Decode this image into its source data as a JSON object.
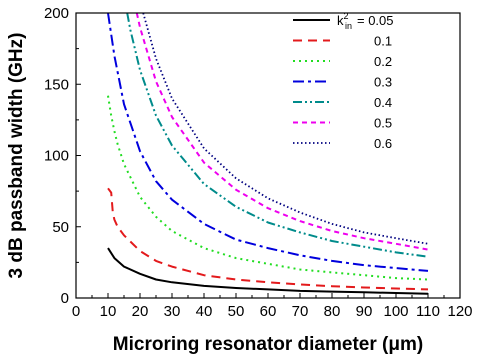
{
  "chart_data": {
    "type": "line",
    "xlabel": "Microring resonator diameter (μm)",
    "ylabel": "3 dB passband width (GHz)",
    "xlim": [
      0,
      120
    ],
    "ylim": [
      0,
      200
    ],
    "xticks": [
      0,
      10,
      20,
      30,
      40,
      50,
      60,
      70,
      80,
      90,
      100,
      110,
      120
    ],
    "yticks": [
      0,
      50,
      100,
      150,
      200
    ],
    "legend_position": "top-right",
    "legend_title_prefix": "k",
    "legend_title_sup": "2",
    "legend_title_sub": "in",
    "legend_title_suffix": "= 0.05",
    "series": [
      {
        "name": "0.05",
        "color": "#000000",
        "style": "solid",
        "x": [
          10,
          12,
          15,
          20,
          25,
          30,
          40,
          50,
          60,
          70,
          80,
          90,
          100,
          110
        ],
        "y": [
          35,
          28,
          22,
          17,
          13,
          11,
          8.5,
          7,
          6,
          5,
          4.5,
          4,
          3.5,
          3
        ]
      },
      {
        "name": "0.1",
        "color": "#e31a1c",
        "style": "dash",
        "x": [
          10,
          11,
          11.5,
          12,
          13,
          15,
          20,
          25,
          30,
          40,
          50,
          60,
          70,
          80,
          90,
          100,
          110
        ],
        "y": [
          77,
          74,
          60,
          55,
          50,
          44,
          33,
          26,
          22,
          16,
          13,
          11,
          9.5,
          8.3,
          7.4,
          6.7,
          6
        ]
      },
      {
        "name": "0.2",
        "color": "#22dd22",
        "style": "dot",
        "x": [
          10,
          11,
          12,
          13,
          15,
          20,
          25,
          30,
          40,
          50,
          60,
          70,
          80,
          90,
          100,
          110
        ],
        "y": [
          142,
          128,
          117,
          108,
          94,
          71,
          57,
          47,
          35,
          28,
          24,
          20,
          18,
          16,
          14,
          13
        ]
      },
      {
        "name": "0.3",
        "color": "#0000dd",
        "style": "dashdot",
        "x": [
          10,
          12,
          15,
          20,
          25,
          30,
          40,
          50,
          60,
          70,
          80,
          90,
          100,
          110
        ],
        "y": [
          200,
          170,
          136,
          103,
          82,
          69,
          52,
          41,
          35,
          30,
          26,
          23,
          21,
          19
        ]
      },
      {
        "name": "0.4",
        "color": "#008b8b",
        "style": "dashdotdot",
        "x": [
          16,
          17,
          20,
          25,
          30,
          40,
          50,
          60,
          70,
          80,
          90,
          100,
          110
        ],
        "y": [
          200,
          188,
          160,
          128,
          107,
          80,
          64,
          53,
          46,
          40,
          36,
          32,
          29
        ]
      },
      {
        "name": "0.5",
        "color": "#ee00ee",
        "style": "shortdash",
        "x": [
          19,
          20,
          25,
          30,
          40,
          50,
          60,
          70,
          80,
          90,
          100,
          110
        ],
        "y": [
          200,
          190,
          152,
          127,
          95,
          76,
          63,
          54,
          47,
          42,
          38,
          34
        ]
      },
      {
        "name": "0.6",
        "color": "#000080",
        "style": "shortdot",
        "x": [
          21,
          25,
          30,
          40,
          50,
          60,
          70,
          80,
          90,
          100,
          110
        ],
        "y": [
          200,
          168,
          140,
          105,
          84,
          70,
          60,
          52,
          46,
          42,
          38
        ]
      }
    ]
  }
}
